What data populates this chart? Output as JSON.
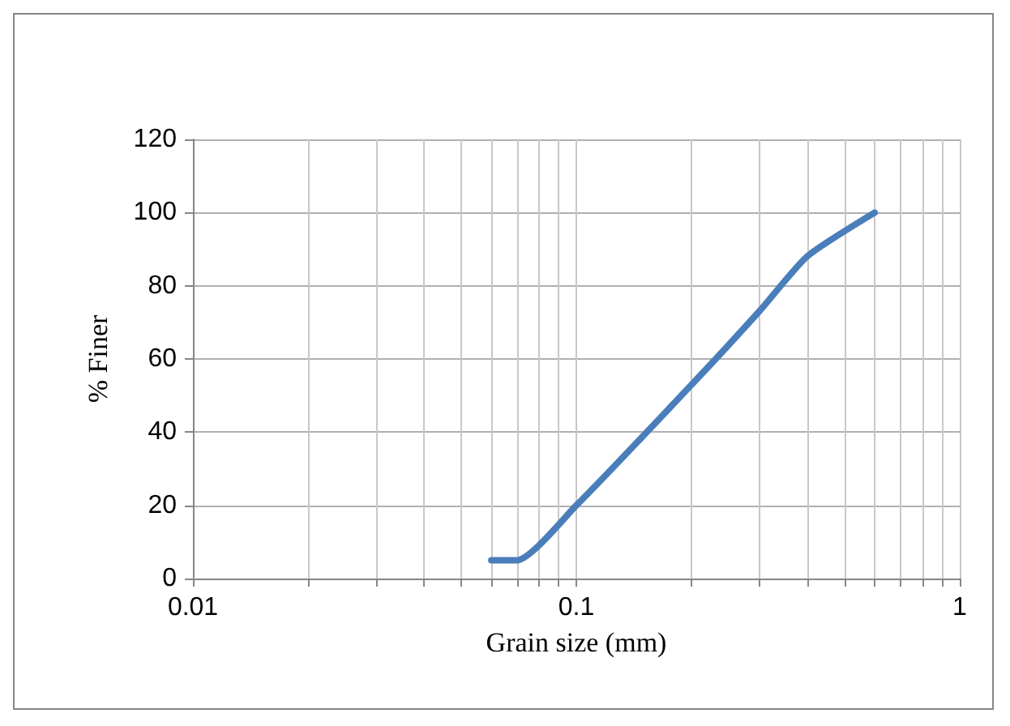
{
  "chart_data": {
    "type": "line",
    "xlabel": "Grain size (mm)",
    "ylabel": "% Finer",
    "log": "x",
    "grid": true,
    "marker": "none",
    "line_style": "solid",
    "x": [
      0.06,
      0.07,
      0.1,
      0.2,
      0.3,
      0.4,
      0.6
    ],
    "series": [
      {
        "color": "#4a7ebb",
        "values": [
          5,
          5,
          20,
          53,
          73,
          88,
          100
        ]
      }
    ],
    "xlim": [
      0.01,
      1
    ],
    "xticks": [
      {
        "value": 0.01,
        "label": "0.01"
      },
      {
        "value": 0.02,
        "label": null
      },
      {
        "value": 0.03,
        "label": null
      },
      {
        "value": 0.04,
        "label": null
      },
      {
        "value": 0.05,
        "label": null
      },
      {
        "value": 0.06,
        "label": null
      },
      {
        "value": 0.07,
        "label": null
      },
      {
        "value": 0.08,
        "label": null
      },
      {
        "value": 0.09,
        "label": null
      },
      {
        "value": 0.1,
        "label": "0.1"
      },
      {
        "value": 0.2,
        "label": null
      },
      {
        "value": 0.3,
        "label": null
      },
      {
        "value": 0.4,
        "label": null
      },
      {
        "value": 0.5,
        "label": null
      },
      {
        "value": 0.6,
        "label": null
      },
      {
        "value": 0.7,
        "label": null
      },
      {
        "value": 0.8,
        "label": null
      },
      {
        "value": 0.9,
        "label": null
      },
      {
        "value": 1,
        "label": "1"
      }
    ],
    "ylim": [
      0,
      120
    ],
    "yticks": [
      0,
      20,
      40,
      60,
      80,
      100,
      120
    ]
  }
}
